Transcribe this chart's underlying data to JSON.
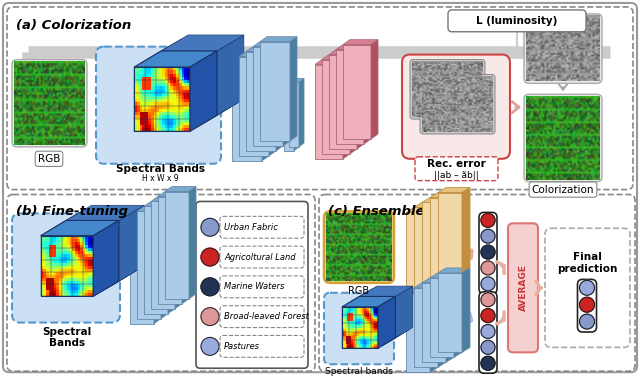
{
  "bg_color": "#ffffff",
  "panel_a_label": "(a) Colorization",
  "panel_b_label": "(b) Fine-tuning",
  "panel_c_label": "(c) Ensemble",
  "label_rgb": "RGB",
  "label_spectral_bands": "Spectral Bands",
  "label_hxwx9": "H x W x 9",
  "label_rec_error": "Rec. error",
  "label_rec_formula": "||ab – ãb||",
  "label_luminosity": "L (luminosity)",
  "label_colorization": "Colorization",
  "label_spectral_bands_b": "Spectral\nBands",
  "label_spectral_bands_c": "Spectral bands",
  "label_rgb_c": "RGB",
  "label_average": "AVERAGE",
  "label_final_prediction": "Final\nprediction",
  "blue_panel_color": "#cce0f5",
  "blue_panel_border": "#5599cc",
  "encoder_blue_color": "#7aabcf",
  "encoder_blue_dark": "#4a7fa0",
  "encoder_blue_light": "#aacce8",
  "encoder_red_color": "#d98090",
  "encoder_red_dark": "#b05060",
  "encoder_red_light": "#f0b0bb",
  "encoder_orange_color": "#e8c080",
  "encoder_orange_dark": "#c09040",
  "encoder_orange_light": "#f0d8a8",
  "legend_items": [
    {
      "color": "#8899cc",
      "label": "Urban Fabric"
    },
    {
      "color": "#cc2222",
      "label": "Agricoltural Land"
    },
    {
      "color": "#223355",
      "label": "Marine Waters"
    },
    {
      "color": "#dd9999",
      "label": "Broad-leaved Forest"
    },
    {
      "color": "#99aadd",
      "label": "Pastures"
    }
  ],
  "circle_colors_top": [
    "#cc2222",
    "#8899cc",
    "#223355",
    "#dd9999",
    "#99aadd"
  ],
  "circle_colors_bot": [
    "#dd9999",
    "#cc2222",
    "#99aadd",
    "#8899cc",
    "#223355"
  ],
  "circle_colors_final": [
    "#99aadd",
    "#cc2222",
    "#8899cc"
  ]
}
